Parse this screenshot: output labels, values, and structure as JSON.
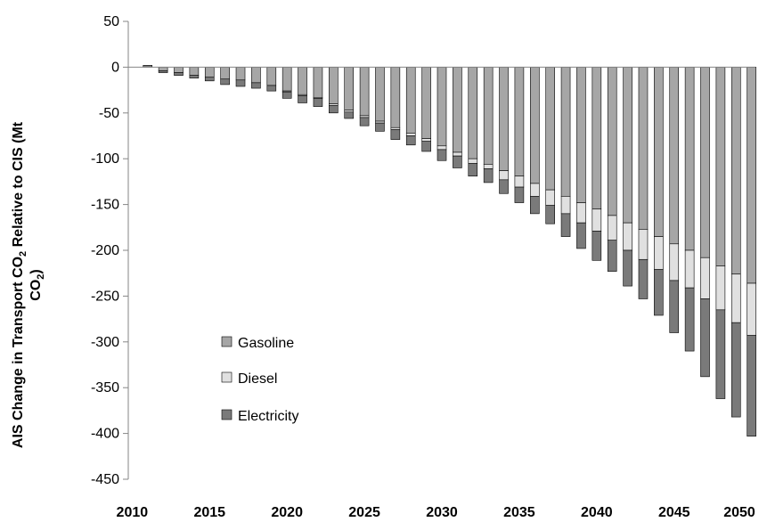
{
  "chart_data": {
    "type": "bar",
    "stacked": true,
    "title": "",
    "xlabel": "",
    "ylabel": {
      "main": "AIS Change in Transport CO",
      "sub1": "2",
      "rest": " Relative to CIS (Mt",
      "line2": "CO",
      "sub2": "2",
      "close": ")"
    },
    "ylim": [
      -450,
      50
    ],
    "yticks": [
      50,
      0,
      -50,
      -100,
      -150,
      -200,
      -250,
      -300,
      -350,
      -400,
      -450
    ],
    "xticks": [
      "2010",
      "2015",
      "2020",
      "2025",
      "2030",
      "2035",
      "2040",
      "2045",
      "2050"
    ],
    "categories": [
      2011,
      2012,
      2013,
      2014,
      2015,
      2016,
      2017,
      2018,
      2019,
      2020,
      2021,
      2022,
      2023,
      2024,
      2025,
      2026,
      2027,
      2028,
      2029,
      2030,
      2031,
      2032,
      2033,
      2034,
      2035,
      2036,
      2037,
      2038,
      2039,
      2040,
      2041,
      2042,
      2043,
      2044,
      2045,
      2046,
      2047,
      2048,
      2049,
      2050
    ],
    "series": [
      {
        "name": "Gasoline",
        "color": "#a6a6a6",
        "values": [
          0,
          -4,
          -6,
          -9,
          -11,
          -13,
          -14,
          -17,
          -20,
          -26,
          -30,
          -33,
          -40,
          -47,
          -53,
          -59,
          -66,
          -72,
          -78,
          -86,
          -93,
          -100,
          -106,
          -113,
          -119,
          -127,
          -134,
          -141,
          -148,
          -155,
          -162,
          -170,
          -177,
          -185,
          -193,
          -200,
          -208,
          -217,
          -226,
          -236
        ]
      },
      {
        "name": "Diesel",
        "color": "#e0e0e0",
        "values": [
          0,
          0,
          0,
          0,
          0,
          0,
          0,
          0,
          0,
          -1,
          -1,
          -1,
          -2,
          -2,
          -2,
          -2,
          -2,
          -3,
          -3,
          -4,
          -4,
          -5,
          -5,
          -10,
          -12,
          -14,
          -17,
          -19,
          -22,
          -24,
          -27,
          -30,
          -33,
          -36,
          -40,
          -41,
          -45,
          -48,
          -53,
          -57
        ]
      },
      {
        "name": "Electricity",
        "color": "#7a7a7a",
        "values": [
          2,
          -2,
          -3,
          -3,
          -4,
          -6,
          -7,
          -6,
          -6,
          -7,
          -8,
          -9,
          -8,
          -7,
          -9,
          -9,
          -11,
          -10,
          -11,
          -12,
          -13,
          -14,
          -15,
          -15,
          -17,
          -19,
          -20,
          -25,
          -28,
          -32,
          -34,
          -39,
          -43,
          -50,
          -57,
          -69,
          -85,
          -97,
          -103,
          -110
        ]
      }
    ],
    "legend_position": "left-center",
    "grid": false
  }
}
